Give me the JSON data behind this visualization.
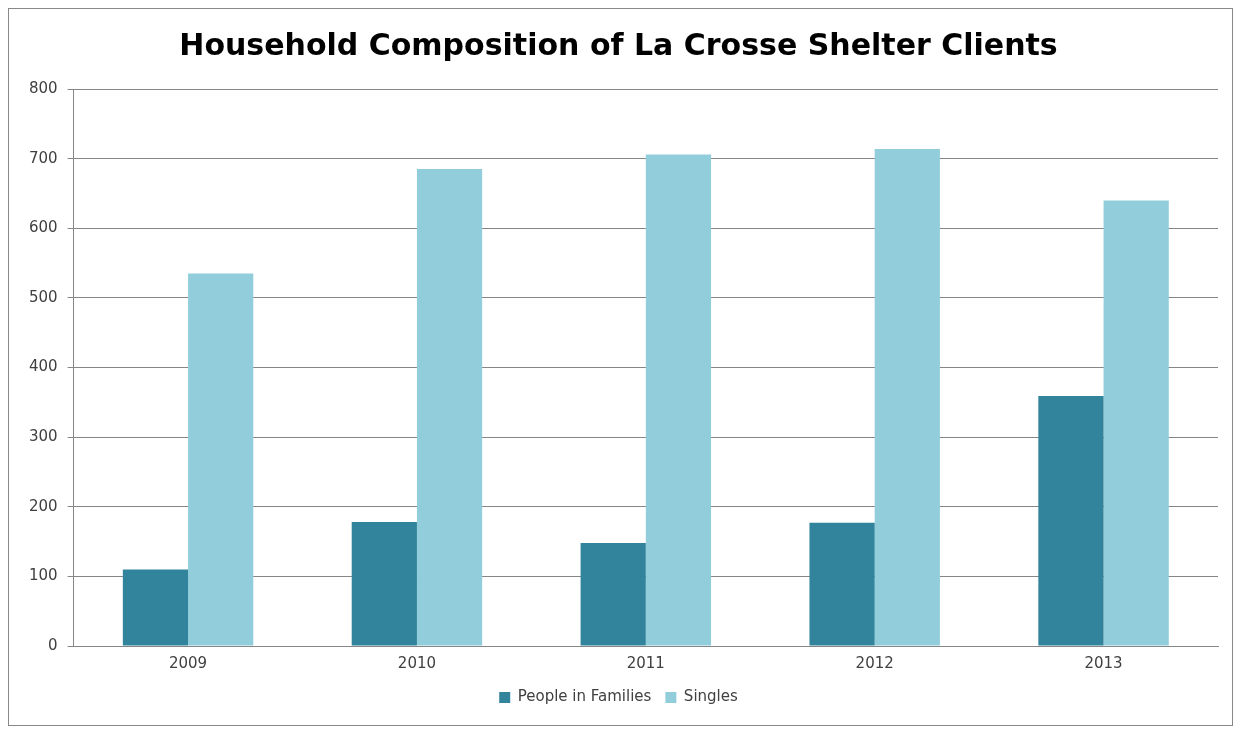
{
  "chart_data": {
    "type": "bar",
    "title": "Household Composition of La Crosse Shelter Clients",
    "categories": [
      "2009",
      "2010",
      "2011",
      "2012",
      "2013"
    ],
    "series": [
      {
        "name": "People in Families",
        "color": "#31849b",
        "values": [
          110,
          178,
          148,
          177,
          359
        ]
      },
      {
        "name": "Singles",
        "color": "#92cddc",
        "values": [
          535,
          685,
          706,
          714,
          640
        ]
      }
    ],
    "ylim": [
      0,
      800
    ],
    "yticks": [
      0,
      100,
      200,
      300,
      400,
      500,
      600,
      700,
      800
    ],
    "grid": "y",
    "legend": "bottom"
  }
}
